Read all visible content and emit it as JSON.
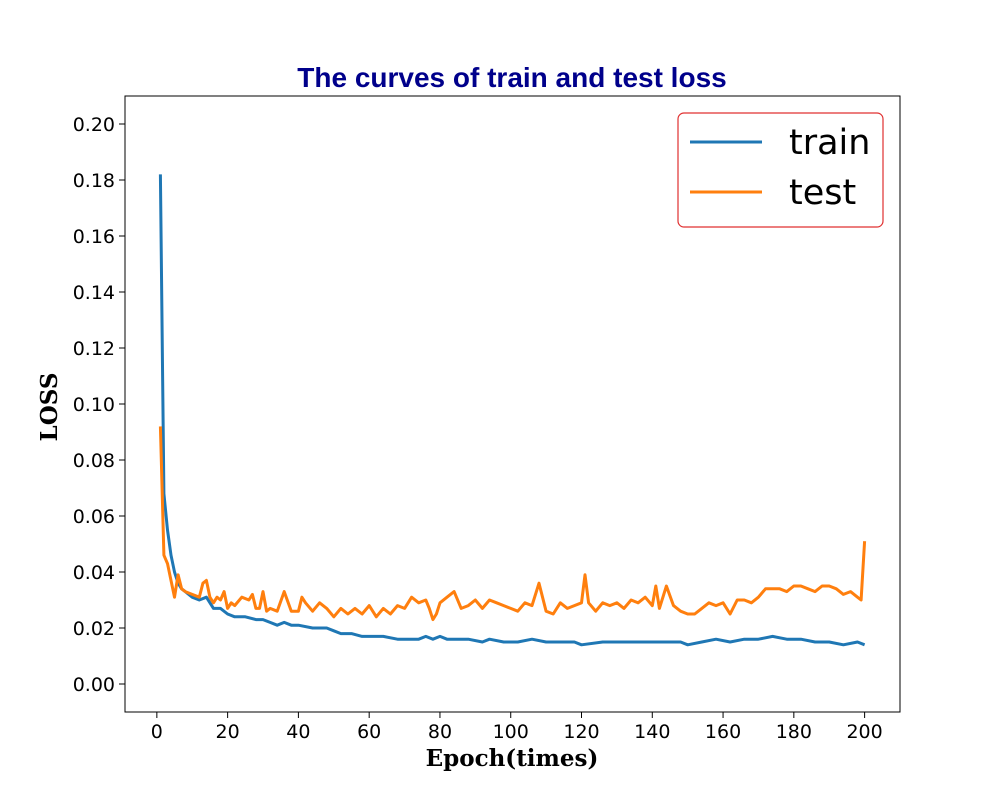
{
  "chart_data": {
    "type": "line",
    "title": "The curves of train and test loss",
    "xlabel": "Epoch(times)",
    "ylabel": "LOSS",
    "xlim": [
      -9,
      210
    ],
    "ylim": [
      -0.01,
      0.21
    ],
    "xticks": [
      0,
      20,
      40,
      60,
      80,
      100,
      120,
      140,
      160,
      180,
      200
    ],
    "yticks": [
      0.0,
      0.02,
      0.04,
      0.06,
      0.08,
      0.1,
      0.12,
      0.14,
      0.16,
      0.18,
      0.2
    ],
    "xtick_labels": [
      "0",
      "20",
      "40",
      "60",
      "80",
      "100",
      "120",
      "140",
      "160",
      "180",
      "200"
    ],
    "ytick_labels": [
      "0.00",
      "0.02",
      "0.04",
      "0.06",
      "0.08",
      "0.10",
      "0.12",
      "0.14",
      "0.16",
      "0.18",
      "0.20"
    ],
    "grid": false,
    "legend_position": "top-right",
    "series": [
      {
        "name": "train",
        "color": "#1f77b4",
        "x": [
          1,
          2,
          3,
          4,
          5,
          6,
          7,
          8,
          10,
          12,
          14,
          16,
          18,
          20,
          22,
          25,
          28,
          30,
          32,
          34,
          36,
          38,
          40,
          44,
          48,
          50,
          52,
          55,
          58,
          60,
          64,
          68,
          70,
          74,
          76,
          78,
          80,
          82,
          84,
          88,
          92,
          94,
          98,
          102,
          106,
          110,
          114,
          118,
          120,
          126,
          130,
          136,
          140,
          146,
          148,
          150,
          154,
          158,
          162,
          166,
          170,
          174,
          178,
          182,
          186,
          190,
          194,
          198,
          200
        ],
        "values": [
          0.182,
          0.068,
          0.055,
          0.046,
          0.04,
          0.036,
          0.034,
          0.033,
          0.031,
          0.03,
          0.031,
          0.027,
          0.027,
          0.025,
          0.024,
          0.024,
          0.023,
          0.023,
          0.022,
          0.021,
          0.022,
          0.021,
          0.021,
          0.02,
          0.02,
          0.019,
          0.018,
          0.018,
          0.017,
          0.017,
          0.017,
          0.016,
          0.016,
          0.016,
          0.017,
          0.016,
          0.017,
          0.016,
          0.016,
          0.016,
          0.015,
          0.016,
          0.015,
          0.015,
          0.016,
          0.015,
          0.015,
          0.015,
          0.014,
          0.015,
          0.015,
          0.015,
          0.015,
          0.015,
          0.015,
          0.014,
          0.015,
          0.016,
          0.015,
          0.016,
          0.016,
          0.017,
          0.016,
          0.016,
          0.015,
          0.015,
          0.014,
          0.015,
          0.014
        ]
      },
      {
        "name": "test",
        "color": "#ff7f0e",
        "x": [
          1,
          2,
          3,
          4,
          5,
          6,
          7,
          8,
          10,
          12,
          13,
          14,
          15,
          16,
          17,
          18,
          19,
          20,
          21,
          22,
          24,
          26,
          27,
          28,
          29,
          30,
          31,
          32,
          34,
          36,
          38,
          40,
          41,
          42,
          44,
          46,
          48,
          50,
          52,
          54,
          56,
          58,
          60,
          62,
          64,
          66,
          68,
          70,
          72,
          74,
          76,
          77,
          78,
          79,
          80,
          82,
          84,
          86,
          88,
          90,
          92,
          94,
          96,
          98,
          100,
          102,
          104,
          106,
          108,
          110,
          112,
          114,
          116,
          118,
          120,
          121,
          122,
          124,
          126,
          128,
          130,
          132,
          134,
          136,
          138,
          140,
          141,
          142,
          144,
          146,
          148,
          150,
          152,
          154,
          156,
          158,
          160,
          162,
          164,
          166,
          168,
          170,
          172,
          174,
          176,
          178,
          180,
          182,
          184,
          186,
          188,
          190,
          192,
          194,
          196,
          198,
          199,
          200
        ],
        "values": [
          0.092,
          0.046,
          0.043,
          0.037,
          0.031,
          0.039,
          0.034,
          0.033,
          0.032,
          0.031,
          0.036,
          0.037,
          0.031,
          0.029,
          0.031,
          0.03,
          0.033,
          0.027,
          0.029,
          0.028,
          0.031,
          0.03,
          0.032,
          0.027,
          0.027,
          0.033,
          0.026,
          0.027,
          0.026,
          0.033,
          0.026,
          0.026,
          0.031,
          0.029,
          0.026,
          0.029,
          0.027,
          0.024,
          0.027,
          0.025,
          0.027,
          0.025,
          0.028,
          0.024,
          0.027,
          0.025,
          0.028,
          0.027,
          0.031,
          0.029,
          0.03,
          0.027,
          0.023,
          0.025,
          0.029,
          0.031,
          0.033,
          0.027,
          0.028,
          0.03,
          0.027,
          0.03,
          0.029,
          0.028,
          0.027,
          0.026,
          0.029,
          0.028,
          0.036,
          0.026,
          0.025,
          0.029,
          0.027,
          0.028,
          0.029,
          0.039,
          0.029,
          0.026,
          0.029,
          0.028,
          0.029,
          0.027,
          0.03,
          0.029,
          0.031,
          0.028,
          0.035,
          0.027,
          0.035,
          0.028,
          0.026,
          0.025,
          0.025,
          0.027,
          0.029,
          0.028,
          0.029,
          0.025,
          0.03,
          0.03,
          0.029,
          0.031,
          0.034,
          0.034,
          0.034,
          0.033,
          0.035,
          0.035,
          0.034,
          0.033,
          0.035,
          0.035,
          0.034,
          0.032,
          0.033,
          0.031,
          0.03,
          0.051
        ]
      }
    ]
  }
}
